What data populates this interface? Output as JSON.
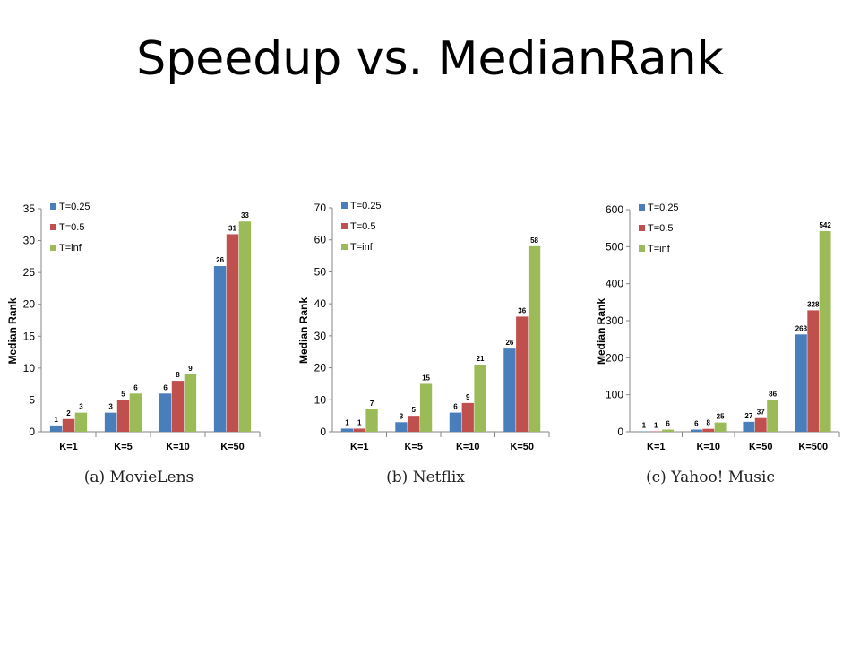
{
  "title": "Speedup vs. MedianRank",
  "colors": {
    "T=0.25": "#4a7ebb",
    "T=0.5": "#c0504d",
    "T=inf": "#9bbb59"
  },
  "chart_data": [
    {
      "type": "bar",
      "caption": "(a) MovieLens",
      "ylabel": "Median Rank",
      "ylim": [
        0,
        35
      ],
      "yticks": [
        0,
        5,
        10,
        15,
        20,
        25,
        30,
        35
      ],
      "categories": [
        "K=1",
        "K=5",
        "K=10",
        "K=50"
      ],
      "series": [
        {
          "name": "T=0.25",
          "values": [
            1,
            3,
            6,
            26
          ]
        },
        {
          "name": "T=0.5",
          "values": [
            2,
            5,
            8,
            31
          ]
        },
        {
          "name": "T=inf",
          "values": [
            3,
            6,
            9,
            33
          ]
        }
      ],
      "legend": "top-left"
    },
    {
      "type": "bar",
      "caption": "(b) Netflix",
      "ylabel": "Median Rank",
      "ylim": [
        0,
        70
      ],
      "yticks": [
        0,
        10,
        20,
        30,
        40,
        50,
        60,
        70
      ],
      "categories": [
        "K=1",
        "K=5",
        "K=10",
        "K=50"
      ],
      "series": [
        {
          "name": "T=0.25",
          "values": [
            1,
            3,
            6,
            26
          ]
        },
        {
          "name": "T=0.5",
          "values": [
            1,
            5,
            9,
            36
          ]
        },
        {
          "name": "T=inf",
          "values": [
            7,
            15,
            21,
            58
          ]
        }
      ],
      "legend": "top-left"
    },
    {
      "type": "bar",
      "caption": "(c) Yahoo! Music",
      "ylabel": "Median Rank",
      "ylim": [
        0,
        600
      ],
      "yticks": [
        0,
        100,
        200,
        300,
        400,
        500,
        600
      ],
      "categories": [
        "K=1",
        "K=10",
        "K=50",
        "K=500"
      ],
      "series": [
        {
          "name": "T=0.25",
          "values": [
            1,
            6,
            27,
            263
          ]
        },
        {
          "name": "T=0.5",
          "values": [
            1,
            8,
            37,
            328
          ]
        },
        {
          "name": "T=inf",
          "values": [
            6,
            25,
            86,
            542
          ]
        }
      ],
      "legend": "top-left"
    }
  ]
}
